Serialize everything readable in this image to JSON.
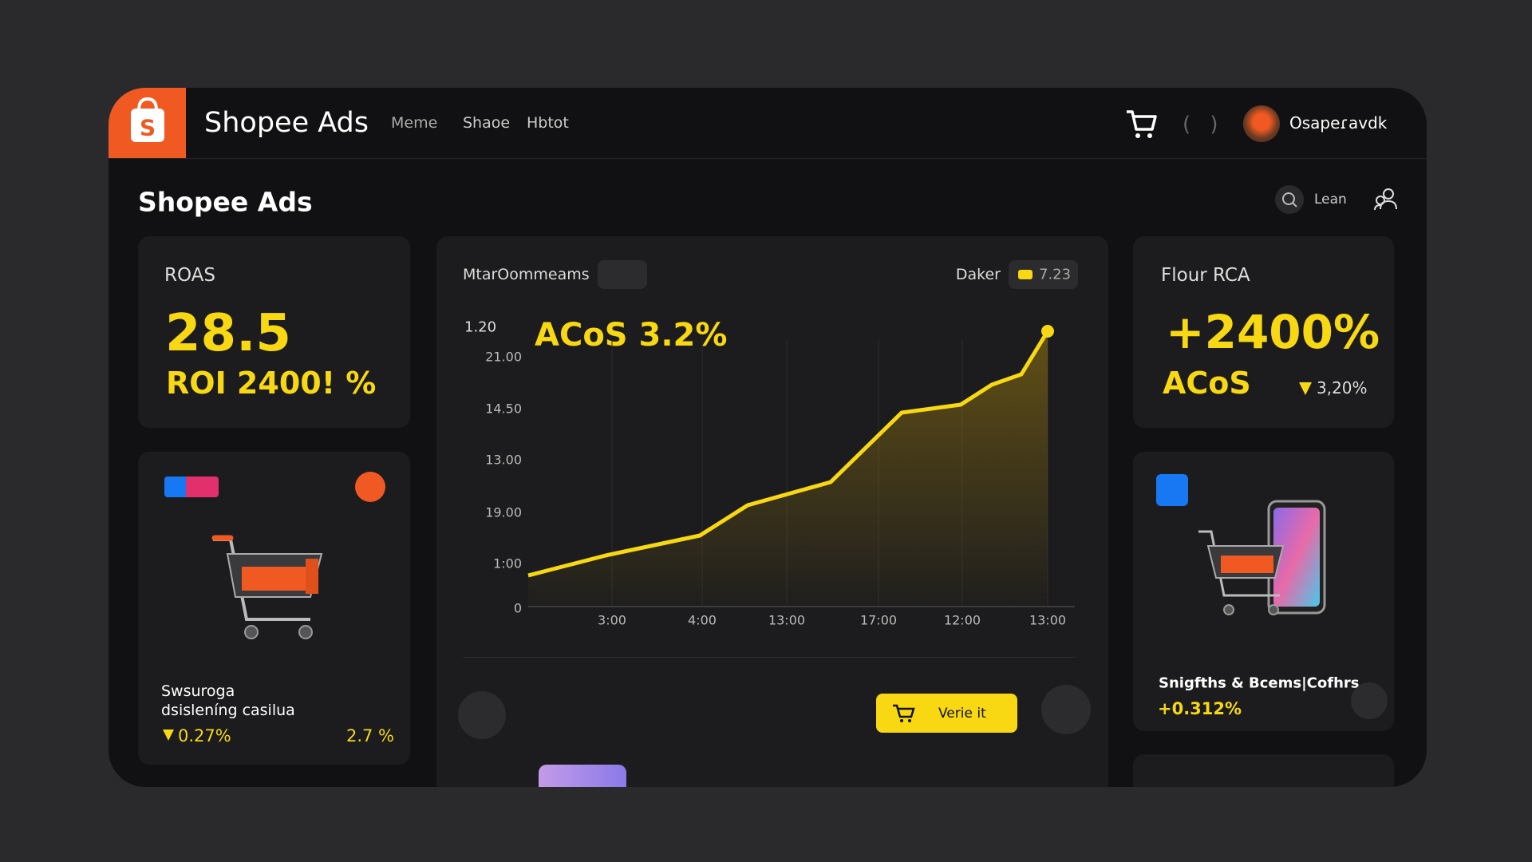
{
  "header": {
    "logo": "S",
    "brand": "Shopee Ads",
    "nav": [
      "Meme",
      "Shaoe",
      "Hbtot"
    ],
    "brackets": "( )",
    "user": "Osapeɾavdk"
  },
  "page": {
    "title": "Shopee Ads",
    "search": "Lean"
  },
  "roas": {
    "label": "ROAS",
    "value": "28.5",
    "roi": "ROI 2400! %"
  },
  "product": {
    "name": [
      "Swsuroga",
      "dsisleníng casilua"
    ],
    "change": "0.27%",
    "share": "2.7 %"
  },
  "performance": {
    "title": "MtarOommeams",
    "filter": "Daker",
    "badge": "7.23",
    "axis_top": "1.20",
    "headline": "ACoS 3.2%",
    "y_labels": [
      "21.00",
      "14.50",
      "13.00",
      "19.00",
      "1:00",
      "0"
    ],
    "x_labels": [
      "3:00",
      "4:00",
      "13:00",
      "17:00",
      "12:00",
      "13:00"
    ],
    "button": "Verie it"
  },
  "flour": {
    "label": "Flour RCA",
    "value": "+2400%",
    "metric": "ACoS",
    "change": "3,20%"
  },
  "promo": {
    "title": "Snigfths & Bcems|Cofhrs",
    "change": "+0.312%"
  }
}
